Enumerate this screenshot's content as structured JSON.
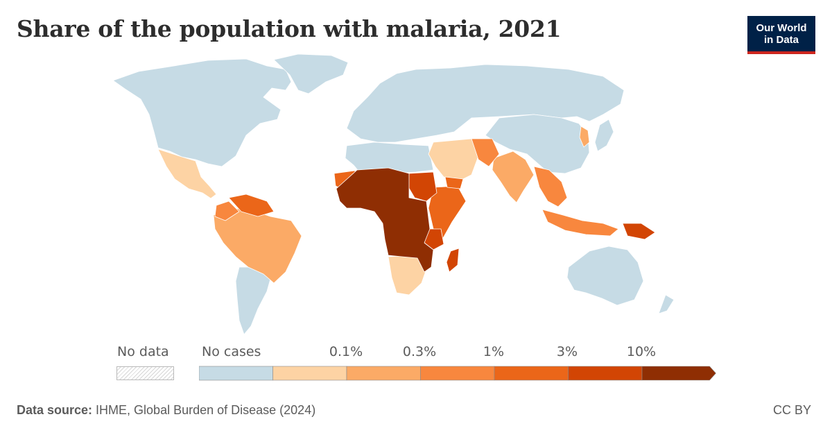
{
  "header": {
    "title": "Share of the population with malaria, 2021"
  },
  "logo": {
    "line1": "Our World",
    "line2": "in Data",
    "background_color": "#002147",
    "accent_color": "#ce261e"
  },
  "legend": {
    "no_data_label": "No data",
    "no_cases_label": "No cases",
    "thresholds": [
      "0.1%",
      "0.3%",
      "1%",
      "3%",
      "10%"
    ],
    "bins": [
      {
        "range": "No cases",
        "color": "#c6dbe5"
      },
      {
        "range": "0 – 0.1%",
        "color": "#fdd3a4"
      },
      {
        "range": "0.1% – 0.3%",
        "color": "#fbaa66"
      },
      {
        "range": "0.3% – 1%",
        "color": "#f8873e"
      },
      {
        "range": "1% – 3%",
        "color": "#eb6619"
      },
      {
        "range": "3% – 10%",
        "color": "#d24504"
      },
      {
        "range": "> 10%",
        "color": "#8f2e03"
      }
    ]
  },
  "map_regions": [
    {
      "region": "North America",
      "level": 0
    },
    {
      "region": "Greenland",
      "level": 0
    },
    {
      "region": "Europe & Russia",
      "level": 0
    },
    {
      "region": "China & East Asia",
      "level": 0
    },
    {
      "region": "Australia",
      "level": 0
    },
    {
      "region": "New Zealand",
      "level": 0
    },
    {
      "region": "Southern South America",
      "level": 0
    },
    {
      "region": "North Africa",
      "level": 0
    },
    {
      "region": "Mexico & Central America",
      "level": 1
    },
    {
      "region": "Arabian Peninsula",
      "level": 1
    },
    {
      "region": "Southern Africa",
      "level": 1
    },
    {
      "region": "Brazil & Andes",
      "level": 2
    },
    {
      "region": "India",
      "level": 2
    },
    {
      "region": "Southeast Asia",
      "level": 3
    },
    {
      "region": "Venezuela & Guianas",
      "level": 4
    },
    {
      "region": "East Africa",
      "level": 4
    },
    {
      "region": "Sudan",
      "level": 5
    },
    {
      "region": "Papua New Guinea",
      "level": 5
    },
    {
      "region": "Madagascar",
      "level": 5
    },
    {
      "region": "West & Central Africa",
      "level": 6
    }
  ],
  "footer": {
    "source_prefix": "Data source:",
    "source_text": " IHME, Global Burden of Disease (2024)",
    "license": "CC BY"
  }
}
